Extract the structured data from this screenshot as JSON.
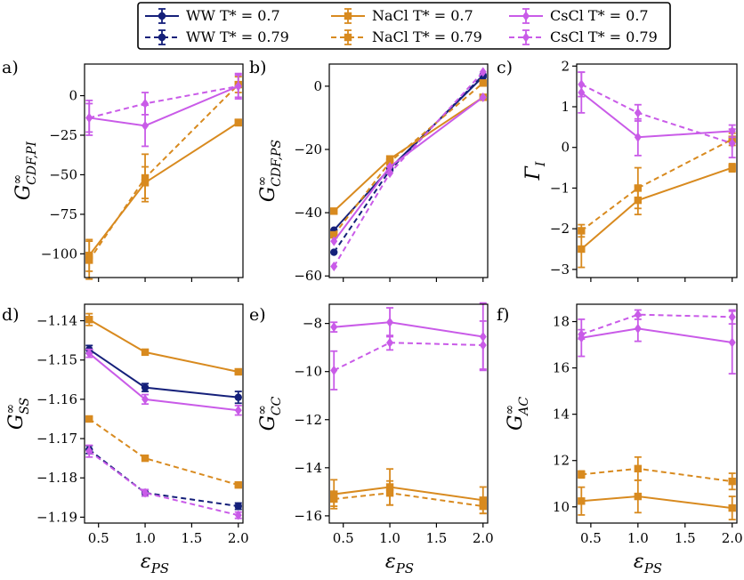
{
  "colors": {
    "WW": "#15207a",
    "NaCl": "#d88a1f",
    "CsCl": "#c95be8"
  },
  "legend": {
    "entries": [
      {
        "key": "WW_07",
        "label": "WW T* = 0.7",
        "model": "WW",
        "style": "solid",
        "marker": "circle"
      },
      {
        "key": "WW_079",
        "label": "WW T* = 0.79",
        "model": "WW",
        "style": "dashed",
        "marker": "circle"
      },
      {
        "key": "Na_07",
        "label": "NaCl T* = 0.7",
        "model": "NaCl",
        "style": "solid",
        "marker": "square"
      },
      {
        "key": "Na_079",
        "label": "NaCl T* = 0.79",
        "model": "NaCl",
        "style": "dashed",
        "marker": "square"
      },
      {
        "key": "Cs_07",
        "label": "CsCl T* = 0.7",
        "model": "CsCl",
        "style": "solid",
        "marker": "diamond"
      },
      {
        "key": "Cs_079",
        "label": "CsCl T* = 0.79",
        "model": "CsCl",
        "style": "dashed",
        "marker": "diamond"
      }
    ]
  },
  "chart_data": [
    {
      "panel": "a)",
      "type": "line",
      "ylabel": "G∞_CDF,PI",
      "xlabel": "",
      "x": [
        0.4,
        1.0,
        2.0
      ],
      "xlim": [
        0.35,
        2.05
      ],
      "ylim": [
        -115,
        20
      ],
      "yticks": [
        0,
        -25,
        -50,
        -75,
        -100
      ],
      "ytick_labels": [
        "0",
        "−25",
        "−50",
        "−75",
        "−100"
      ],
      "xticks": [
        0.5,
        1.0,
        1.5,
        2.0
      ],
      "xtick_labels": [
        "",
        "",
        "",
        ""
      ],
      "series": [
        {
          "name": "NaCl T* = 0.7",
          "model": "NaCl",
          "style": "solid",
          "marker": "square",
          "values": [
            -101,
            -55,
            -17
          ],
          "errors": [
            10,
            10,
            2
          ]
        },
        {
          "name": "NaCl T* = 0.79",
          "model": "NaCl",
          "style": "dashed",
          "marker": "square",
          "values": [
            -104,
            -52,
            7
          ],
          "errors": [
            12,
            15,
            5
          ]
        },
        {
          "name": "CsCl T* = 0.7",
          "model": "CsCl",
          "style": "solid",
          "marker": "diamond",
          "values": [
            -14,
            -19,
            6
          ],
          "errors": [
            11,
            13,
            8
          ]
        },
        {
          "name": "CsCl T* = 0.79",
          "model": "CsCl",
          "style": "dashed",
          "marker": "diamond",
          "values": [
            -14,
            -5,
            6
          ],
          "errors": [
            9,
            7,
            7
          ]
        }
      ]
    },
    {
      "panel": "b)",
      "type": "line",
      "ylabel": "G∞_CDF,PS",
      "xlabel": "",
      "x": [
        0.4,
        1.0,
        2.0
      ],
      "xlim": [
        0.35,
        2.05
      ],
      "ylim": [
        -60.5,
        7
      ],
      "yticks": [
        0,
        -20,
        -40,
        -60
      ],
      "ytick_labels": [
        "0",
        "−20",
        "−40",
        "−60"
      ],
      "xticks": [
        0.5,
        1.0,
        1.5,
        2.0
      ],
      "xtick_labels": [
        "",
        "",
        "",
        ""
      ],
      "series": [
        {
          "name": "WW T* = 0.7",
          "model": "WW",
          "style": "solid",
          "marker": "circle",
          "values": [
            -45.5,
            -26,
            3
          ],
          "errors": [
            0,
            0,
            0
          ]
        },
        {
          "name": "WW T* = 0.79",
          "model": "WW",
          "style": "dashed",
          "marker": "circle",
          "values": [
            -52.5,
            -26.5,
            3.5
          ],
          "errors": [
            0,
            0,
            0
          ]
        },
        {
          "name": "NaCl T* = 0.7",
          "model": "NaCl",
          "style": "solid",
          "marker": "square",
          "values": [
            -39.5,
            -23,
            -3.5
          ],
          "errors": [
            0,
            0,
            0
          ]
        },
        {
          "name": "NaCl T* = 0.79",
          "model": "NaCl",
          "style": "dashed",
          "marker": "square",
          "values": [
            -47,
            -24,
            1
          ],
          "errors": [
            0,
            0,
            0
          ]
        },
        {
          "name": "CsCl T* = 0.7",
          "model": "CsCl",
          "style": "solid",
          "marker": "diamond",
          "values": [
            -49,
            -25.5,
            -3.5
          ],
          "errors": [
            0,
            0,
            0
          ]
        },
        {
          "name": "CsCl T* = 0.79",
          "model": "CsCl",
          "style": "dashed",
          "marker": "diamond",
          "values": [
            -57,
            -27.5,
            4.5
          ],
          "errors": [
            0,
            0,
            0
          ]
        }
      ]
    },
    {
      "panel": "c)",
      "type": "line",
      "ylabel": "Γ_I",
      "xlabel": "",
      "x": [
        0.4,
        1.0,
        2.0
      ],
      "xlim": [
        0.35,
        2.05
      ],
      "ylim": [
        -3.2,
        2.05
      ],
      "yticks": [
        2,
        1,
        0,
        -1,
        -2,
        -3
      ],
      "ytick_labels": [
        "2",
        "1",
        "0",
        "−1",
        "−2",
        "−3"
      ],
      "xticks": [
        0.5,
        1.0,
        1.5,
        2.0
      ],
      "xtick_labels": [
        "",
        "",
        "",
        ""
      ],
      "series": [
        {
          "name": "NaCl T* = 0.7",
          "model": "NaCl",
          "style": "solid",
          "marker": "square",
          "values": [
            -2.5,
            -1.3,
            -0.5
          ],
          "errors": [
            0.45,
            0.35,
            0.1
          ]
        },
        {
          "name": "NaCl T* = 0.79",
          "model": "NaCl",
          "style": "dashed",
          "marker": "square",
          "values": [
            -2.05,
            -1.0,
            0.2
          ],
          "errors": [
            0.15,
            0.5,
            0.15
          ]
        },
        {
          "name": "CsCl T* = 0.7",
          "model": "CsCl",
          "style": "solid",
          "marker": "diamond",
          "values": [
            1.35,
            0.25,
            0.4
          ],
          "errors": [
            0.5,
            0.45,
            0.15
          ]
        },
        {
          "name": "CsCl T* = 0.79",
          "model": "CsCl",
          "style": "dashed",
          "marker": "diamond",
          "values": [
            1.55,
            0.85,
            0.1
          ],
          "errors": [
            0.3,
            0.2,
            0.35
          ]
        }
      ]
    },
    {
      "panel": "d)",
      "type": "line",
      "ylabel": "G∞_SS",
      "xlabel": "ε_PS",
      "x": [
        0.4,
        1.0,
        2.0
      ],
      "xlim": [
        0.35,
        2.05
      ],
      "ylim": [
        -1.1915,
        -1.1358
      ],
      "yticks": [
        -1.14,
        -1.15,
        -1.16,
        -1.17,
        -1.18,
        -1.19
      ],
      "ytick_labels": [
        "−1.14",
        "−1.15",
        "−1.16",
        "−1.17",
        "−1.18",
        "−1.19"
      ],
      "xticks": [
        0.5,
        1.0,
        1.5,
        2.0
      ],
      "xtick_labels": [
        "0.5",
        "1.0",
        "1.5",
        "2.0"
      ],
      "series": [
        {
          "name": "WW T* = 0.7",
          "model": "WW",
          "style": "solid",
          "marker": "circle",
          "values": [
            -1.1473,
            -1.157,
            -1.1595
          ],
          "errors": [
            0.001,
            0.001,
            0.0015
          ]
        },
        {
          "name": "WW T* = 0.79",
          "model": "WW",
          "style": "dashed",
          "marker": "circle",
          "values": [
            -1.1728,
            -1.1838,
            -1.1872
          ],
          "errors": [
            0.001,
            0.0008,
            0.0008
          ]
        },
        {
          "name": "NaCl T* = 0.7",
          "model": "NaCl",
          "style": "solid",
          "marker": "square",
          "values": [
            -1.1397,
            -1.148,
            -1.153
          ],
          "errors": [
            0.0015,
            0.0005,
            0.0005
          ]
        },
        {
          "name": "NaCl T* = 0.79",
          "model": "NaCl",
          "style": "dashed",
          "marker": "square",
          "values": [
            -1.165,
            -1.175,
            -1.1818
          ],
          "errors": [
            0.0004,
            0.0004,
            0.0004
          ]
        },
        {
          "name": "CsCl T* = 0.7",
          "model": "CsCl",
          "style": "solid",
          "marker": "diamond",
          "values": [
            -1.1483,
            -1.16,
            -1.1628
          ],
          "errors": [
            0.001,
            0.0012,
            0.0012
          ]
        },
        {
          "name": "CsCl T* = 0.79",
          "model": "CsCl",
          "style": "dashed",
          "marker": "diamond",
          "values": [
            -1.1732,
            -1.1838,
            -1.1895
          ],
          "errors": [
            0.0015,
            0.0008,
            0.0008
          ]
        }
      ]
    },
    {
      "panel": "e)",
      "type": "line",
      "ylabel": "G∞_CC",
      "xlabel": "ε_PS",
      "x": [
        0.4,
        1.0,
        2.0
      ],
      "xlim": [
        0.35,
        2.05
      ],
      "ylim": [
        -16.3,
        -7.2
      ],
      "yticks": [
        -8,
        -10,
        -12,
        -14,
        -16
      ],
      "ytick_labels": [
        "−8",
        "−10",
        "−12",
        "−14",
        "−16"
      ],
      "xticks": [
        0.5,
        1.0,
        1.5,
        2.0
      ],
      "xtick_labels": [
        "0.5",
        "1.0",
        "1.5",
        "2.0"
      ],
      "series": [
        {
          "name": "NaCl T* = 0.7",
          "model": "NaCl",
          "style": "solid",
          "marker": "square",
          "values": [
            -15.1,
            -14.8,
            -15.35
          ],
          "errors": [
            0.6,
            0.75,
            0.55
          ]
        },
        {
          "name": "NaCl T* = 0.79",
          "model": "NaCl",
          "style": "dashed",
          "marker": "square",
          "values": [
            -15.3,
            -15.05,
            -15.6
          ],
          "errors": [
            0.3,
            0.5,
            0.3
          ]
        },
        {
          "name": "CsCl T* = 0.7",
          "model": "CsCl",
          "style": "solid",
          "marker": "diamond",
          "values": [
            -8.15,
            -7.95,
            -8.55
          ],
          "errors": [
            0.2,
            0.6,
            1.4
          ]
        },
        {
          "name": "CsCl T* = 0.79",
          "model": "CsCl",
          "style": "dashed",
          "marker": "diamond",
          "values": [
            -9.95,
            -8.8,
            -8.9
          ],
          "errors": [
            0.8,
            0.3,
            1.0
          ]
        }
      ]
    },
    {
      "panel": "f)",
      "type": "line",
      "ylabel": "G∞_AC",
      "xlabel": "ε_PS",
      "x": [
        0.4,
        1.0,
        2.0
      ],
      "xlim": [
        0.35,
        2.05
      ],
      "ylim": [
        9.3,
        18.75
      ],
      "yticks": [
        18,
        16,
        14,
        12,
        10
      ],
      "ytick_labels": [
        "18",
        "16",
        "14",
        "12",
        "10"
      ],
      "xticks": [
        0.5,
        1.0,
        1.5,
        2.0
      ],
      "xtick_labels": [
        "0.5",
        "1.0",
        "1.5",
        "2.0"
      ],
      "series": [
        {
          "name": "NaCl T* = 0.7",
          "model": "NaCl",
          "style": "solid",
          "marker": "square",
          "values": [
            10.25,
            10.45,
            9.95
          ],
          "errors": [
            0.6,
            0.7,
            0.5
          ]
        },
        {
          "name": "NaCl T* = 0.79",
          "model": "NaCl",
          "style": "dashed",
          "marker": "square",
          "values": [
            11.4,
            11.65,
            11.1
          ],
          "errors": [
            0.15,
            0.5,
            0.35
          ]
        },
        {
          "name": "CsCl T* = 0.7",
          "model": "CsCl",
          "style": "solid",
          "marker": "diamond",
          "values": [
            17.3,
            17.7,
            17.1
          ],
          "errors": [
            0.8,
            0.55,
            1.35
          ]
        },
        {
          "name": "CsCl T* = 0.79",
          "model": "CsCl",
          "style": "dashed",
          "marker": "diamond",
          "values": [
            17.45,
            18.3,
            18.2
          ],
          "errors": [
            0.2,
            0.2,
            0.3
          ]
        }
      ]
    }
  ]
}
